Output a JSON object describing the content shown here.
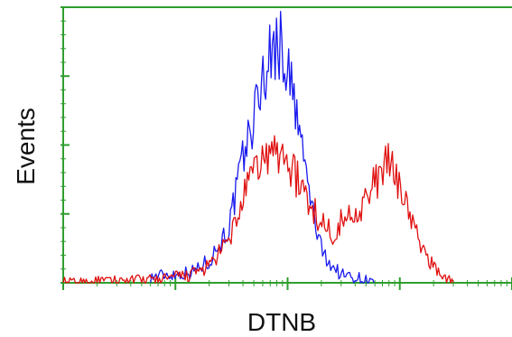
{
  "chart_data": {
    "type": "line",
    "title": "",
    "xlabel": "DTNB",
    "ylabel": "Events",
    "x_scale": "log",
    "grid": false,
    "legend": "none",
    "xlim": [
      1,
      10000
    ],
    "ylim": [
      0,
      100
    ],
    "frame_color": "#2e9e2e",
    "series": [
      {
        "color": "#1a1aee",
        "x": [
          6,
          8,
          10,
          14,
          20,
          30,
          40,
          50,
          60,
          70,
          80,
          90,
          100,
          120,
          140,
          160,
          180,
          200,
          250,
          300,
          400,
          500,
          600
        ],
        "values": [
          2,
          3,
          3,
          4,
          8,
          20,
          45,
          60,
          75,
          82,
          88,
          84,
          78,
          60,
          45,
          30,
          20,
          12,
          6,
          3,
          2,
          1,
          0
        ]
      },
      {
        "color": "#e01010",
        "x": [
          1,
          6,
          10,
          14,
          20,
          30,
          40,
          50,
          60,
          80,
          100,
          120,
          150,
          200,
          250,
          300,
          400,
          500,
          600,
          700,
          800,
          900,
          1000,
          1200,
          1500,
          2000,
          2500,
          3000
        ],
        "values": [
          0,
          1,
          2,
          3,
          6,
          15,
          30,
          40,
          45,
          47,
          45,
          38,
          30,
          22,
          18,
          22,
          26,
          30,
          36,
          41,
          43,
          40,
          36,
          26,
          14,
          6,
          2,
          0
        ]
      }
    ]
  }
}
